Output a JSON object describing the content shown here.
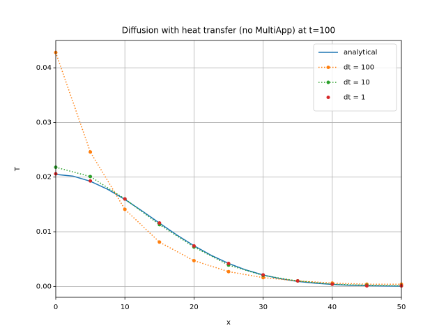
{
  "chart_data": {
    "type": "line",
    "title": "Diffusion with heat transfer (no MultiApp) at t=100",
    "xlabel": "x",
    "ylabel": "T",
    "xlim": [
      0,
      50
    ],
    "xticks": [
      0,
      10,
      20,
      30,
      40,
      50
    ],
    "ylim": [
      -0.002,
      0.045
    ],
    "yticks": [
      {
        "value": 0,
        "label": "0.00"
      },
      {
        "value": 0.01,
        "label": "0.01"
      },
      {
        "value": 0.02,
        "label": "0.02"
      },
      {
        "value": 0.03,
        "label": "0.03"
      },
      {
        "value": 0.04,
        "label": "0.04"
      }
    ],
    "grid": true,
    "legend": "upper right",
    "series": [
      {
        "name": "analytical",
        "color": "#1f77b4",
        "linestyle": "solid",
        "marker": false,
        "x": [
          0,
          2.5,
          5,
          7.5,
          10,
          12.5,
          15,
          17.5,
          20,
          22.5,
          25,
          27.5,
          30,
          32.5,
          35,
          37.5,
          40,
          42.5,
          45,
          47.5,
          50
        ],
        "values": [
          0.0205,
          0.02018,
          0.01924,
          0.01777,
          0.01592,
          0.01379,
          0.01158,
          0.00942,
          0.00743,
          0.00567,
          0.0042,
          0.00301,
          0.00209,
          0.0014,
          0.00091,
          0.00058,
          0.00036,
          0.00021,
          0.00012,
          7e-05,
          4e-05
        ]
      },
      {
        "name": "dt = 100",
        "color": "#ff7f0e",
        "linestyle": "dotted",
        "marker": true,
        "x": [
          0,
          5,
          10,
          15,
          20,
          25,
          30,
          35,
          40,
          45,
          50
        ],
        "values": [
          0.0428,
          0.0246,
          0.0141,
          0.0081,
          0.0047,
          0.0027,
          0.0016,
          0.001,
          0.0006,
          0.0004,
          0.0004
        ]
      },
      {
        "name": "dt = 10",
        "color": "#2ca02c",
        "linestyle": "dotted",
        "marker": true,
        "x": [
          0,
          5,
          10,
          15,
          20,
          25,
          30,
          35,
          40,
          45,
          50
        ],
        "values": [
          0.0218,
          0.0201,
          0.016,
          0.0113,
          0.0072,
          0.0039,
          0.002,
          0.001,
          0.0004,
          0.0002,
          0.0001
        ]
      },
      {
        "name": "dt = 1",
        "color": "#d62728",
        "linestyle": "none",
        "marker": true,
        "x": [
          0,
          5,
          10,
          15,
          20,
          25,
          30,
          35,
          40,
          45,
          50
        ],
        "values": [
          0.0206,
          0.0193,
          0.016,
          0.0116,
          0.0074,
          0.0042,
          0.0021,
          0.001,
          0.0004,
          0.0001,
          0.0001
        ]
      }
    ]
  }
}
